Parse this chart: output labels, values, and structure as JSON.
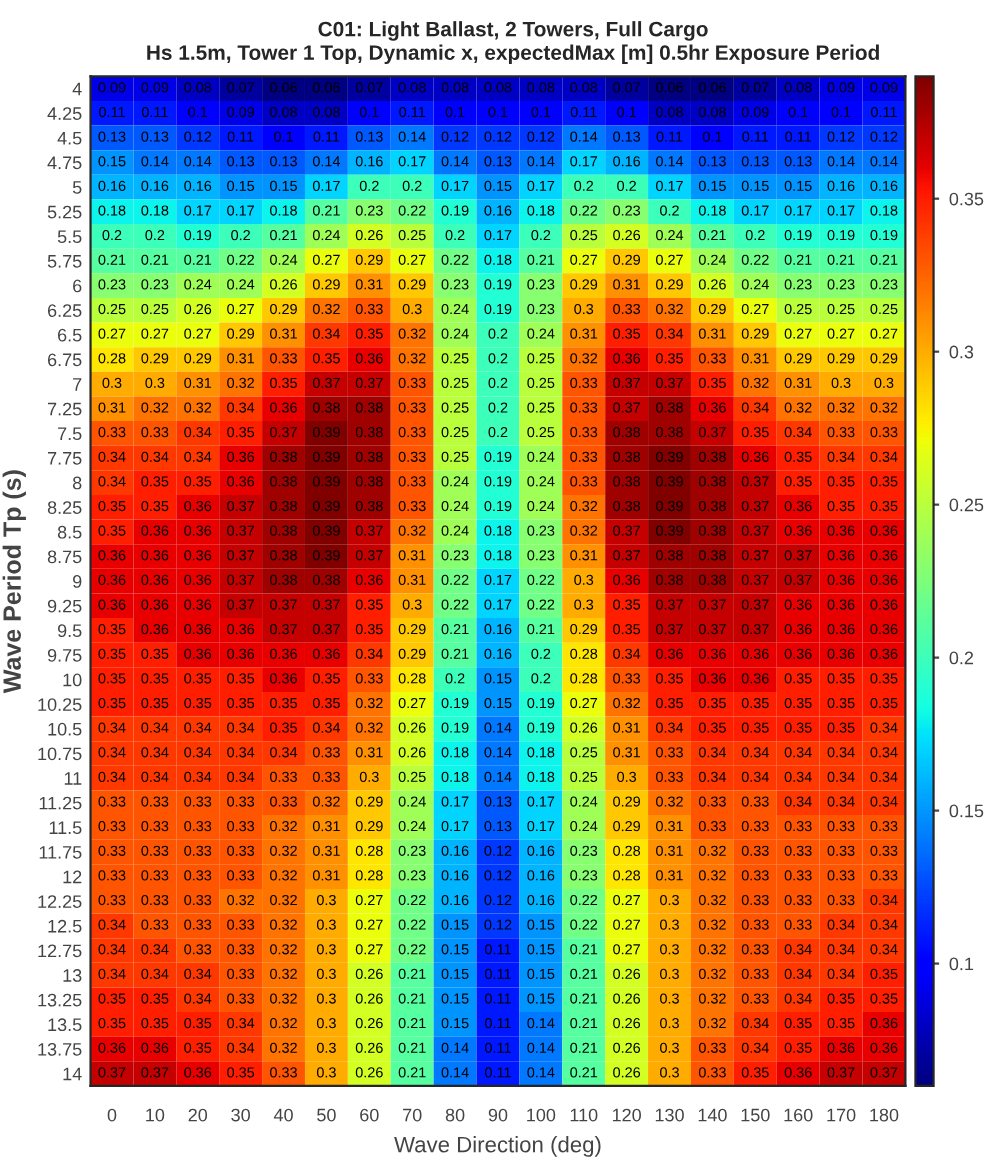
{
  "chart_data": {
    "type": "heatmap",
    "title": "C01: Light Ballast, 2 Towers, Full Cargo",
    "subtitle": "Hs 1.5m, Tower 1 Top, Dynamic x, expectedMax [m] 0.5hr Exposure Period",
    "xlabel": "Wave Direction (deg)",
    "ylabel": "Wave Period Tp (s)",
    "categories": [
      "0",
      "10",
      "20",
      "30",
      "40",
      "50",
      "60",
      "70",
      "80",
      "90",
      "100",
      "110",
      "120",
      "130",
      "140",
      "150",
      "160",
      "170",
      "180"
    ],
    "y_categories": [
      "4",
      "4.25",
      "4.5",
      "4.75",
      "5",
      "5.25",
      "5.5",
      "5.75",
      "6",
      "6.25",
      "6.5",
      "6.75",
      "7",
      "7.25",
      "7.5",
      "7.75",
      "8",
      "8.25",
      "8.5",
      "8.75",
      "9",
      "9.25",
      "9.5",
      "9.75",
      "10",
      "10.25",
      "10.5",
      "10.75",
      "11",
      "11.25",
      "11.5",
      "11.75",
      "12",
      "12.25",
      "12.5",
      "12.75",
      "13",
      "13.25",
      "13.5",
      "13.75",
      "14"
    ],
    "cells": [
      [
        0.09,
        0.09,
        0.08,
        0.07,
        0.06,
        0.06,
        0.07,
        0.08,
        0.08,
        0.08,
        0.08,
        0.08,
        0.07,
        0.06,
        0.06,
        0.07,
        0.08,
        0.09,
        0.09
      ],
      [
        0.11,
        0.11,
        0.1,
        0.09,
        0.08,
        0.08,
        0.1,
        0.11,
        0.1,
        0.1,
        0.1,
        0.11,
        0.1,
        0.08,
        0.08,
        0.09,
        0.1,
        0.1,
        0.11
      ],
      [
        0.13,
        0.13,
        0.12,
        0.11,
        0.1,
        0.11,
        0.13,
        0.14,
        0.12,
        0.12,
        0.12,
        0.14,
        0.13,
        0.11,
        0.1,
        0.11,
        0.11,
        0.12,
        0.12
      ],
      [
        0.15,
        0.14,
        0.14,
        0.13,
        0.13,
        0.14,
        0.16,
        0.17,
        0.14,
        0.13,
        0.14,
        0.17,
        0.16,
        0.14,
        0.13,
        0.13,
        0.13,
        0.14,
        0.14
      ],
      [
        0.16,
        0.16,
        0.16,
        0.15,
        0.15,
        0.17,
        0.2,
        0.2,
        0.17,
        0.15,
        0.17,
        0.2,
        0.2,
        0.17,
        0.15,
        0.15,
        0.15,
        0.16,
        0.16
      ],
      [
        0.18,
        0.18,
        0.17,
        0.17,
        0.18,
        0.21,
        0.23,
        0.22,
        0.19,
        0.16,
        0.18,
        0.22,
        0.23,
        0.2,
        0.18,
        0.17,
        0.17,
        0.17,
        0.18
      ],
      [
        0.2,
        0.2,
        0.19,
        0.2,
        0.21,
        0.24,
        0.26,
        0.25,
        0.2,
        0.17,
        0.2,
        0.25,
        0.26,
        0.24,
        0.21,
        0.2,
        0.19,
        0.19,
        0.19
      ],
      [
        0.21,
        0.21,
        0.21,
        0.22,
        0.24,
        0.27,
        0.29,
        0.27,
        0.22,
        0.18,
        0.21,
        0.27,
        0.29,
        0.27,
        0.24,
        0.22,
        0.21,
        0.21,
        0.21
      ],
      [
        0.23,
        0.23,
        0.24,
        0.24,
        0.26,
        0.29,
        0.31,
        0.29,
        0.23,
        0.19,
        0.23,
        0.29,
        0.31,
        0.29,
        0.26,
        0.24,
        0.23,
        0.23,
        0.23
      ],
      [
        0.25,
        0.25,
        0.26,
        0.27,
        0.29,
        0.32,
        0.33,
        0.3,
        0.24,
        0.19,
        0.23,
        0.3,
        0.33,
        0.32,
        0.29,
        0.27,
        0.25,
        0.25,
        0.25
      ],
      [
        0.27,
        0.27,
        0.27,
        0.29,
        0.31,
        0.34,
        0.35,
        0.32,
        0.24,
        0.2,
        0.24,
        0.31,
        0.35,
        0.34,
        0.31,
        0.29,
        0.27,
        0.27,
        0.27
      ],
      [
        0.28,
        0.29,
        0.29,
        0.31,
        0.33,
        0.35,
        0.36,
        0.32,
        0.25,
        0.2,
        0.25,
        0.32,
        0.36,
        0.35,
        0.33,
        0.31,
        0.29,
        0.29,
        0.29
      ],
      [
        0.3,
        0.3,
        0.31,
        0.32,
        0.35,
        0.37,
        0.37,
        0.33,
        0.25,
        0.2,
        0.25,
        0.33,
        0.37,
        0.37,
        0.35,
        0.32,
        0.31,
        0.3,
        0.3
      ],
      [
        0.31,
        0.32,
        0.32,
        0.34,
        0.36,
        0.38,
        0.38,
        0.33,
        0.25,
        0.2,
        0.25,
        0.33,
        0.37,
        0.38,
        0.36,
        0.34,
        0.32,
        0.32,
        0.32
      ],
      [
        0.33,
        0.33,
        0.34,
        0.35,
        0.37,
        0.39,
        0.38,
        0.33,
        0.25,
        0.2,
        0.25,
        0.33,
        0.38,
        0.38,
        0.37,
        0.35,
        0.34,
        0.33,
        0.33
      ],
      [
        0.34,
        0.34,
        0.34,
        0.36,
        0.38,
        0.39,
        0.38,
        0.33,
        0.25,
        0.19,
        0.24,
        0.33,
        0.38,
        0.39,
        0.38,
        0.36,
        0.35,
        0.34,
        0.34
      ],
      [
        0.34,
        0.35,
        0.35,
        0.36,
        0.38,
        0.39,
        0.38,
        0.33,
        0.24,
        0.19,
        0.24,
        0.33,
        0.38,
        0.39,
        0.38,
        0.37,
        0.35,
        0.35,
        0.35
      ],
      [
        0.35,
        0.35,
        0.36,
        0.37,
        0.38,
        0.39,
        0.38,
        0.33,
        0.24,
        0.19,
        0.24,
        0.32,
        0.38,
        0.39,
        0.38,
        0.37,
        0.36,
        0.35,
        0.35
      ],
      [
        0.35,
        0.36,
        0.36,
        0.37,
        0.38,
        0.39,
        0.37,
        0.32,
        0.24,
        0.18,
        0.23,
        0.32,
        0.37,
        0.39,
        0.38,
        0.37,
        0.36,
        0.36,
        0.36
      ],
      [
        0.36,
        0.36,
        0.36,
        0.37,
        0.38,
        0.39,
        0.37,
        0.31,
        0.23,
        0.18,
        0.23,
        0.31,
        0.37,
        0.38,
        0.38,
        0.37,
        0.37,
        0.36,
        0.36
      ],
      [
        0.36,
        0.36,
        0.36,
        0.37,
        0.38,
        0.38,
        0.36,
        0.31,
        0.22,
        0.17,
        0.22,
        0.3,
        0.36,
        0.38,
        0.38,
        0.37,
        0.37,
        0.36,
        0.36
      ],
      [
        0.36,
        0.36,
        0.36,
        0.37,
        0.37,
        0.37,
        0.35,
        0.3,
        0.22,
        0.17,
        0.22,
        0.3,
        0.35,
        0.37,
        0.37,
        0.37,
        0.36,
        0.36,
        0.36
      ],
      [
        0.35,
        0.36,
        0.36,
        0.36,
        0.37,
        0.37,
        0.35,
        0.29,
        0.21,
        0.16,
        0.21,
        0.29,
        0.35,
        0.37,
        0.37,
        0.37,
        0.36,
        0.36,
        0.36
      ],
      [
        0.35,
        0.35,
        0.36,
        0.36,
        0.36,
        0.36,
        0.34,
        0.29,
        0.21,
        0.16,
        0.2,
        0.28,
        0.34,
        0.36,
        0.36,
        0.36,
        0.36,
        0.36,
        0.36
      ],
      [
        0.35,
        0.35,
        0.35,
        0.35,
        0.36,
        0.35,
        0.33,
        0.28,
        0.2,
        0.15,
        0.2,
        0.28,
        0.33,
        0.35,
        0.36,
        0.36,
        0.35,
        0.35,
        0.35
      ],
      [
        0.35,
        0.35,
        0.35,
        0.35,
        0.35,
        0.35,
        0.32,
        0.27,
        0.19,
        0.15,
        0.19,
        0.27,
        0.32,
        0.35,
        0.35,
        0.35,
        0.35,
        0.35,
        0.35
      ],
      [
        0.34,
        0.34,
        0.34,
        0.34,
        0.35,
        0.34,
        0.32,
        0.26,
        0.19,
        0.14,
        0.19,
        0.26,
        0.31,
        0.34,
        0.35,
        0.35,
        0.35,
        0.35,
        0.34
      ],
      [
        0.34,
        0.34,
        0.34,
        0.34,
        0.34,
        0.33,
        0.31,
        0.26,
        0.18,
        0.14,
        0.18,
        0.25,
        0.31,
        0.33,
        0.34,
        0.34,
        0.34,
        0.34,
        0.34
      ],
      [
        0.34,
        0.34,
        0.34,
        0.34,
        0.33,
        0.33,
        0.3,
        0.25,
        0.18,
        0.14,
        0.18,
        0.25,
        0.3,
        0.33,
        0.34,
        0.34,
        0.34,
        0.34,
        0.34
      ],
      [
        0.33,
        0.33,
        0.33,
        0.33,
        0.33,
        0.32,
        0.29,
        0.24,
        0.17,
        0.13,
        0.17,
        0.24,
        0.29,
        0.32,
        0.33,
        0.33,
        0.34,
        0.34,
        0.34
      ],
      [
        0.33,
        0.33,
        0.33,
        0.33,
        0.32,
        0.31,
        0.29,
        0.24,
        0.17,
        0.13,
        0.17,
        0.24,
        0.29,
        0.31,
        0.33,
        0.33,
        0.33,
        0.33,
        0.33
      ],
      [
        0.33,
        0.33,
        0.33,
        0.33,
        0.32,
        0.31,
        0.28,
        0.23,
        0.16,
        0.12,
        0.16,
        0.23,
        0.28,
        0.31,
        0.32,
        0.33,
        0.33,
        0.33,
        0.33
      ],
      [
        0.33,
        0.33,
        0.33,
        0.33,
        0.32,
        0.31,
        0.28,
        0.23,
        0.16,
        0.12,
        0.16,
        0.23,
        0.28,
        0.31,
        0.32,
        0.33,
        0.33,
        0.33,
        0.33
      ],
      [
        0.33,
        0.33,
        0.33,
        0.32,
        0.32,
        0.3,
        0.27,
        0.22,
        0.16,
        0.12,
        0.16,
        0.22,
        0.27,
        0.3,
        0.32,
        0.33,
        0.33,
        0.33,
        0.34
      ],
      [
        0.34,
        0.33,
        0.33,
        0.33,
        0.32,
        0.3,
        0.27,
        0.22,
        0.15,
        0.12,
        0.15,
        0.22,
        0.27,
        0.3,
        0.32,
        0.33,
        0.33,
        0.34,
        0.34
      ],
      [
        0.34,
        0.34,
        0.33,
        0.33,
        0.32,
        0.3,
        0.27,
        0.22,
        0.15,
        0.11,
        0.15,
        0.21,
        0.27,
        0.3,
        0.32,
        0.33,
        0.34,
        0.34,
        0.34
      ],
      [
        0.34,
        0.34,
        0.34,
        0.33,
        0.32,
        0.3,
        0.26,
        0.21,
        0.15,
        0.11,
        0.15,
        0.21,
        0.26,
        0.3,
        0.32,
        0.33,
        0.34,
        0.34,
        0.35
      ],
      [
        0.35,
        0.35,
        0.34,
        0.33,
        0.32,
        0.3,
        0.26,
        0.21,
        0.15,
        0.11,
        0.15,
        0.21,
        0.26,
        0.3,
        0.32,
        0.33,
        0.34,
        0.35,
        0.35
      ],
      [
        0.35,
        0.35,
        0.35,
        0.34,
        0.32,
        0.3,
        0.26,
        0.21,
        0.15,
        0.11,
        0.14,
        0.21,
        0.26,
        0.3,
        0.32,
        0.34,
        0.35,
        0.35,
        0.36
      ],
      [
        0.36,
        0.36,
        0.35,
        0.34,
        0.32,
        0.3,
        0.26,
        0.21,
        0.14,
        0.11,
        0.14,
        0.21,
        0.26,
        0.3,
        0.33,
        0.34,
        0.35,
        0.36,
        0.36
      ],
      [
        0.37,
        0.37,
        0.36,
        0.35,
        0.33,
        0.3,
        0.26,
        0.21,
        0.14,
        0.11,
        0.14,
        0.21,
        0.26,
        0.3,
        0.33,
        0.35,
        0.36,
        0.37,
        0.37
      ]
    ],
    "clim": [
      0.06,
      0.39
    ],
    "cticks": [
      0.1,
      0.15,
      0.2,
      0.25,
      0.3,
      0.35
    ],
    "data_labels": true
  }
}
